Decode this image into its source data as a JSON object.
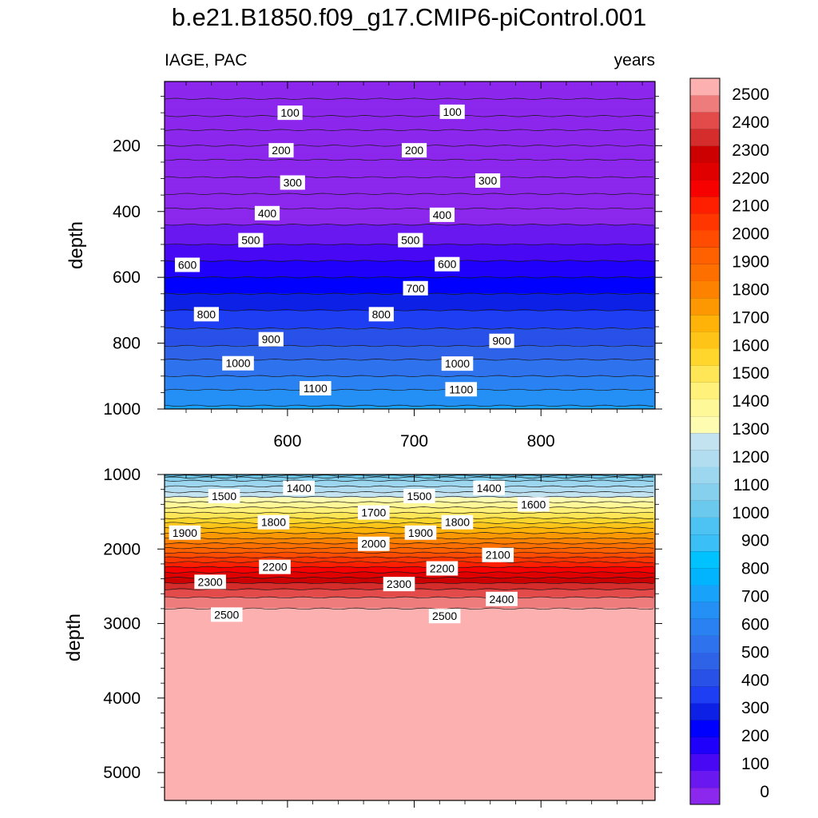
{
  "title": "b.e21.B1850.f09_g17.CMIP6-piControl.001",
  "chart_data": [
    {
      "type": "contour",
      "panel": "upper",
      "left_label": "IAGE, PAC",
      "right_label": "years",
      "ylabel": "depth",
      "xlabel": "",
      "xlim": [
        503,
        890
      ],
      "ylim": [
        1000,
        5
      ],
      "x_ticks": [
        600,
        700,
        800
      ],
      "x_tick_labels": [
        "600",
        "700",
        "800"
      ],
      "y_ticks": [
        200,
        400,
        600,
        800,
        1000
      ],
      "y_tick_labels": [
        "200",
        "400",
        "600",
        "800",
        "1000"
      ],
      "contour_interval": 50,
      "contour_labels": [
        {
          "text": "100",
          "x": 602,
          "y": 100
        },
        {
          "text": "100",
          "x": 730,
          "y": 97
        },
        {
          "text": "200",
          "x": 595,
          "y": 214
        },
        {
          "text": "200",
          "x": 700,
          "y": 214
        },
        {
          "text": "300",
          "x": 604,
          "y": 312
        },
        {
          "text": "300",
          "x": 758,
          "y": 306
        },
        {
          "text": "400",
          "x": 584,
          "y": 405
        },
        {
          "text": "400",
          "x": 722,
          "y": 410
        },
        {
          "text": "500",
          "x": 571,
          "y": 487
        },
        {
          "text": "500",
          "x": 697,
          "y": 487
        },
        {
          "text": "600",
          "x": 521,
          "y": 562
        },
        {
          "text": "600",
          "x": 726,
          "y": 560
        },
        {
          "text": "700",
          "x": 701,
          "y": 633
        },
        {
          "text": "800",
          "x": 536,
          "y": 712
        },
        {
          "text": "800",
          "x": 674,
          "y": 712
        },
        {
          "text": "900",
          "x": 587,
          "y": 788
        },
        {
          "text": "900",
          "x": 769,
          "y": 793
        },
        {
          "text": "1000",
          "x": 561,
          "y": 861
        },
        {
          "text": "1000",
          "x": 734,
          "y": 862
        },
        {
          "text": "1100",
          "x": 622,
          "y": 937
        },
        {
          "text": "1100",
          "x": 737,
          "y": 940
        }
      ]
    },
    {
      "type": "contour",
      "panel": "lower",
      "ylabel": "depth",
      "xlabel": "",
      "xlim": [
        503,
        890
      ],
      "ylim": [
        5374,
        1000
      ],
      "x_ticks": [
        600,
        700,
        800
      ],
      "y_ticks": [
        1000,
        2000,
        3000,
        4000,
        5000
      ],
      "y_tick_labels": [
        "1000",
        "2000",
        "3000",
        "4000",
        "5000"
      ],
      "contour_interval": 50,
      "contour_labels": [
        {
          "text": "1500",
          "x": 550,
          "y": 1290
        },
        {
          "text": "1400",
          "x": 609,
          "y": 1180
        },
        {
          "text": "1500",
          "x": 704,
          "y": 1290
        },
        {
          "text": "1400",
          "x": 759,
          "y": 1180
        },
        {
          "text": "1700",
          "x": 668,
          "y": 1510
        },
        {
          "text": "1600",
          "x": 794,
          "y": 1400
        },
        {
          "text": "1800",
          "x": 589,
          "y": 1640
        },
        {
          "text": "1800",
          "x": 734,
          "y": 1640
        },
        {
          "text": "1900",
          "x": 519,
          "y": 1780
        },
        {
          "text": "1900",
          "x": 705,
          "y": 1780
        },
        {
          "text": "2000",
          "x": 668,
          "y": 1930
        },
        {
          "text": "2100",
          "x": 766,
          "y": 2080
        },
        {
          "text": "2200",
          "x": 590,
          "y": 2240
        },
        {
          "text": "2200",
          "x": 722,
          "y": 2260
        },
        {
          "text": "2300",
          "x": 539,
          "y": 2440
        },
        {
          "text": "2300",
          "x": 688,
          "y": 2470
        },
        {
          "text": "2400",
          "x": 769,
          "y": 2670
        },
        {
          "text": "2500",
          "x": 552,
          "y": 2880
        },
        {
          "text": "2500",
          "x": 724,
          "y": 2900
        }
      ]
    },
    {
      "type": "colorbar",
      "levels": [
        0,
        100,
        200,
        300,
        400,
        500,
        600,
        700,
        800,
        900,
        1000,
        1100,
        1200,
        1300,
        1400,
        1500,
        1600,
        1700,
        1800,
        1900,
        2000,
        2100,
        2200,
        2300,
        2400,
        2500
      ],
      "labels": [
        "0",
        "100",
        "200",
        "300",
        "400",
        "500",
        "600",
        "700",
        "800",
        "900",
        "1000",
        "1100",
        "1200",
        "1300",
        "1400",
        "1500",
        "1600",
        "1700",
        "1800",
        "1900",
        "2000",
        "2100",
        "2200",
        "2300",
        "2400",
        "2500"
      ],
      "colors": [
        "#8c27ed",
        "#6a18f0",
        "#4808f3",
        "#1e00fb",
        "#0000ff",
        "#0c20e6",
        "#1e3ef4",
        "#2851e8",
        "#2e63e8",
        "#2e72ee",
        "#2a82f2",
        "#248ff5",
        "#18a2f9",
        "#02b3fd",
        "#00c2ff",
        "#3abff7",
        "#4dc3f3",
        "#6cc9ee",
        "#86d0ee",
        "#9dd6ef",
        "#b2dcef",
        "#c4e3f1",
        "#fefcb0",
        "#fef898",
        "#fff179",
        "#fee656",
        "#fed62c",
        "#fec518",
        "#ffb308",
        "#fd9702",
        "#fc8200",
        "#fd7000",
        "#ff6000",
        "#ff4c00",
        "#ff3600",
        "#fe1f00",
        "#f70000",
        "#e00000",
        "#cc0000",
        "#d42d2b",
        "#e34b4b",
        "#ee7c7c",
        "#fdb0b0"
      ],
      "profile_upper": [
        [
          5,
          0
        ],
        [
          100,
          90
        ],
        [
          130,
          120
        ],
        [
          160,
          160
        ],
        [
          200,
          200
        ],
        [
          260,
          270
        ],
        [
          320,
          320
        ],
        [
          400,
          410
        ],
        [
          450,
          460
        ],
        [
          500,
          500
        ],
        [
          560,
          560
        ],
        [
          600,
          600
        ],
        [
          700,
          700
        ],
        [
          800,
          790
        ],
        [
          850,
          850
        ],
        [
          900,
          900
        ],
        [
          950,
          960
        ],
        [
          1000,
          1010
        ]
      ],
      "profile_lower": [
        [
          1000,
          1220
        ],
        [
          1040,
          1300
        ],
        [
          1100,
          1370
        ],
        [
          1200,
          1420
        ],
        [
          1300,
          1500
        ],
        [
          1400,
          1570
        ],
        [
          1500,
          1640
        ],
        [
          1600,
          1710
        ],
        [
          1700,
          1790
        ],
        [
          1800,
          1860
        ],
        [
          1900,
          1930
        ],
        [
          2000,
          2010
        ],
        [
          2100,
          2090
        ],
        [
          2200,
          2170
        ],
        [
          2300,
          2240
        ],
        [
          2400,
          2310
        ],
        [
          2500,
          2380
        ],
        [
          2600,
          2430
        ],
        [
          2700,
          2470
        ],
        [
          2800,
          2500
        ],
        [
          2870,
          2525
        ],
        [
          5374,
          2530
        ]
      ]
    }
  ]
}
